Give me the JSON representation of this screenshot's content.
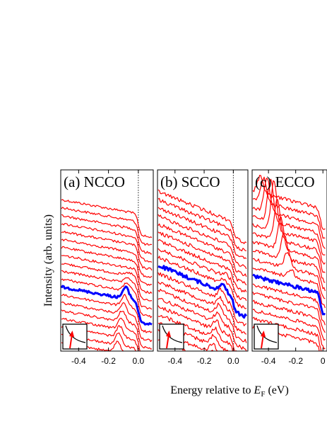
{
  "figure": {
    "ylabel": "Intensity (arb. units)",
    "xlabel_prefix": "Energy relative to ",
    "xlabel_var": "E",
    "xlabel_sub": "F",
    "xlabel_suffix": " (eV)"
  },
  "colors": {
    "spectra": "#ff0000",
    "highlight": "#0000ff",
    "inset_arrow": "#ff0000"
  },
  "chart_data": [
    {
      "type": "line",
      "title": "(a) NCCO",
      "xlim": [
        -0.52,
        0.1
      ],
      "x_ticks": [
        -0.4,
        -0.2,
        0.0
      ],
      "tick_labels": [
        "-0.4",
        "-0.2",
        "0.0"
      ],
      "fermi_line_x": 0.0,
      "n_curves": 19,
      "highlight_index": 11,
      "series": [
        {
          "name": "highlighted",
          "x": [
            -0.5,
            -0.4,
            -0.3,
            -0.2,
            -0.1,
            -0.05,
            0.0,
            0.03,
            0.1
          ],
          "y": [
            0.37,
            0.38,
            0.39,
            0.4,
            0.4,
            0.39,
            0.36,
            0.33,
            0.33
          ]
        }
      ]
    },
    {
      "type": "line",
      "title": "(b) SCCO",
      "xlim": [
        -0.52,
        0.1
      ],
      "x_ticks": [
        -0.4,
        -0.2,
        0.0
      ],
      "tick_labels": [
        "-0.4",
        "-0.2",
        "0.0"
      ],
      "fermi_line_x": 0.0,
      "n_curves": 19,
      "highlight_index": 9,
      "series": [
        {
          "name": "highlighted",
          "x": [
            -0.5,
            -0.4,
            -0.3,
            -0.2,
            -0.1,
            -0.05,
            0.0,
            0.03,
            0.1
          ],
          "y": [
            0.45,
            0.44,
            0.43,
            0.42,
            0.42,
            0.41,
            0.38,
            0.37,
            0.36
          ]
        }
      ]
    },
    {
      "type": "line",
      "title": "(c) ECCO",
      "xlim": [
        -0.52,
        0.03
      ],
      "x_ticks": [
        -0.4,
        -0.2,
        0.0
      ],
      "tick_labels": [
        "-0.4",
        "-0.2",
        "0"
      ],
      "n_curves": 17,
      "highlight_index": 10,
      "series": [
        {
          "name": "highlighted",
          "x": [
            -0.5,
            -0.4,
            -0.3,
            -0.2,
            -0.1,
            -0.05,
            0.0
          ],
          "y": [
            0.47,
            0.47,
            0.48,
            0.48,
            0.47,
            0.44,
            0.38
          ]
        }
      ]
    }
  ]
}
